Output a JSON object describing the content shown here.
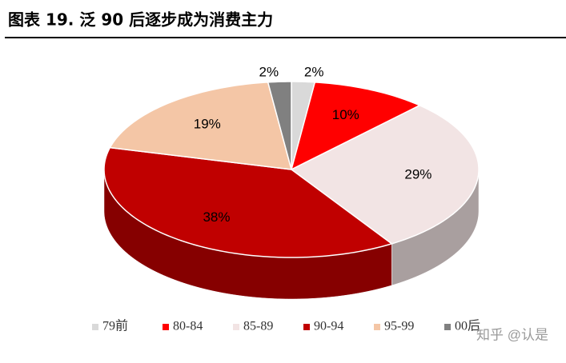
{
  "chart_data": {
    "type": "pie3d",
    "title": "图表 19. 泛 90 后逐步成为消费主力",
    "categories": [
      "79前",
      "80-84",
      "85-89",
      "90-94",
      "95-99",
      "00后"
    ],
    "values": [
      2,
      10,
      29,
      38,
      19,
      2
    ],
    "value_labels": [
      "2%",
      "10%",
      "29%",
      "38%",
      "19%",
      "2%"
    ],
    "colors": [
      "#d9d9d9",
      "#ff0000",
      "#f2e4e4",
      "#c00000",
      "#f4c6a6",
      "#808080"
    ],
    "legend": "bottom"
  },
  "watermark": "知乎 @认是"
}
